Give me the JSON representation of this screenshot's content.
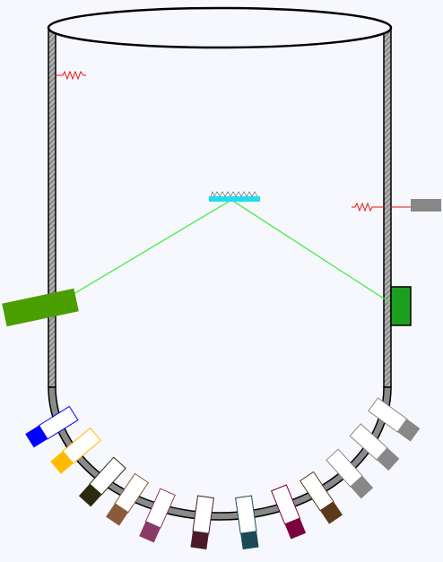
{
  "colors": {
    "background": "#f7f8fd",
    "vessel_outline": "#000000",
    "vessel_wall_fill": "#9a9a9a",
    "bottom_arc": "#8a8a8a",
    "beam": "#33ee33",
    "spring": "#ee1111",
    "mirror": "#22ddee",
    "left_emitter": "#4a9e00",
    "right_detector": "#1e9e1e",
    "right_block": "#888888"
  },
  "slots": [
    {
      "id": "slot-1",
      "color": "#0000ff"
    },
    {
      "id": "slot-2",
      "color": "#ffbb00"
    },
    {
      "id": "slot-3",
      "color": "#2a2a0e"
    },
    {
      "id": "slot-4",
      "color": "#8a5a3a"
    },
    {
      "id": "slot-5",
      "color": "#8a3a66"
    },
    {
      "id": "slot-6",
      "color": "#4a1a2a"
    },
    {
      "id": "slot-7",
      "color": "#1a4a56"
    },
    {
      "id": "slot-8",
      "color": "#7a0040"
    },
    {
      "id": "slot-9",
      "color": "#5a3a1a"
    },
    {
      "id": "slot-10",
      "color": "#888888"
    },
    {
      "id": "slot-11",
      "color": "#888888"
    },
    {
      "id": "slot-12",
      "color": "#888888"
    }
  ]
}
